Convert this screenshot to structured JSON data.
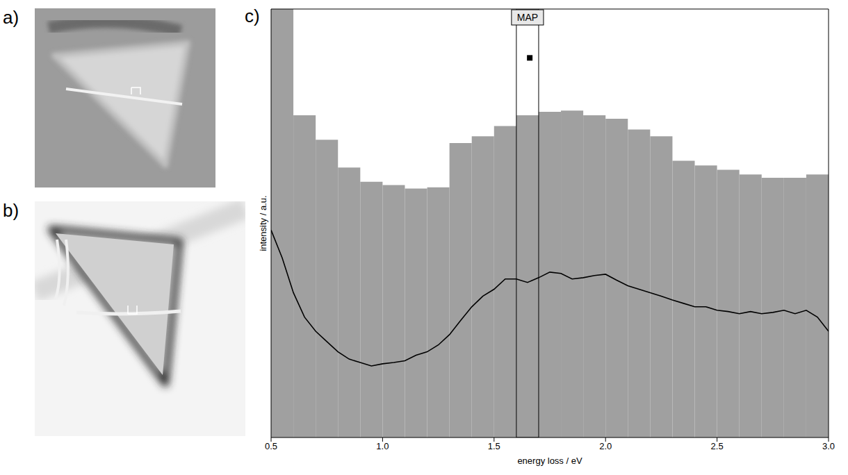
{
  "panels": [
    {
      "label": "a)"
    },
    {
      "label": "b)"
    },
    {
      "label": "c)"
    }
  ],
  "chart_data": {
    "type": "histogram",
    "x_label": "energy loss / eV",
    "y_label": "intensity / a.u.",
    "bins": [
      0.5,
      0.6,
      0.7,
      0.8,
      0.9,
      1.0,
      1.1,
      1.2,
      1.3,
      1.4,
      1.5,
      1.6,
      1.7,
      1.8,
      1.9,
      2.0,
      2.1,
      2.2,
      2.3,
      2.4,
      2.5,
      2.6,
      2.7,
      2.8,
      2.9,
      3.0
    ],
    "counts": [
      110,
      75.2,
      69.5,
      63,
      59.7,
      58.9,
      58.1,
      58.4,
      68.7,
      70.3,
      72.7,
      75.2,
      76,
      76.3,
      75.2,
      74.4,
      71.9,
      70.3,
      64.6,
      63.5,
      62.5,
      61.4,
      60.6,
      60.6,
      61.4
    ],
    "color": "#a0a0a0",
    "series": [
      {
        "type": "line",
        "color": "#000000",
        "x": [
          0.5,
          0.55,
          0.6,
          0.65,
          0.7,
          0.75,
          0.8,
          0.85,
          0.9,
          0.95,
          1.0,
          1.05,
          1.1,
          1.15,
          1.2,
          1.25,
          1.3,
          1.35,
          1.4,
          1.45,
          1.5,
          1.55,
          1.6,
          1.65,
          1.7,
          1.75,
          1.8,
          1.85,
          1.9,
          1.95,
          2.0,
          2.05,
          2.1,
          2.15,
          2.2,
          2.25,
          2.3,
          2.35,
          2.4,
          2.45,
          2.5,
          2.55,
          2.6,
          2.65,
          2.7,
          2.75,
          2.8,
          2.85,
          2.9,
          2.95,
          3.0
        ],
        "values": [
          48.4,
          41.9,
          33.8,
          28.1,
          24.8,
          22.4,
          20,
          18.3,
          17.5,
          16.7,
          17.2,
          17.5,
          17.9,
          19.2,
          20,
          21.6,
          24,
          27.3,
          30.5,
          33,
          34.6,
          37,
          37,
          36.2,
          37.3,
          38.6,
          38.3,
          37,
          37.3,
          37.8,
          38.1,
          36.7,
          35.4,
          34.6,
          33.8,
          33,
          32.1,
          31.3,
          30.5,
          30.5,
          29.7,
          29.4,
          28.9,
          29.4,
          28.9,
          29.2,
          29.7,
          28.9,
          29.7,
          28.1,
          24.8
        ]
      },
      {
        "type": "scatter",
        "color": "#000000",
        "marker": "square",
        "x": [
          1.66
        ],
        "values": [
          88.6
        ]
      }
    ],
    "annotations": [
      {
        "text": "MAP",
        "x_range": [
          1.6,
          1.7
        ]
      }
    ],
    "xlim": [
      0.5,
      3.0
    ],
    "ylim": [
      0,
      100
    ],
    "xticks": [
      0.5,
      {
        "value": 1.0,
        "label": "1.0"
      },
      1.5,
      {
        "value": 2.0,
        "label": "2.0"
      },
      2.5,
      {
        "value": 3.0,
        "label": "3.0"
      }
    ],
    "yticks": [],
    "tick_labels": "x"
  }
}
